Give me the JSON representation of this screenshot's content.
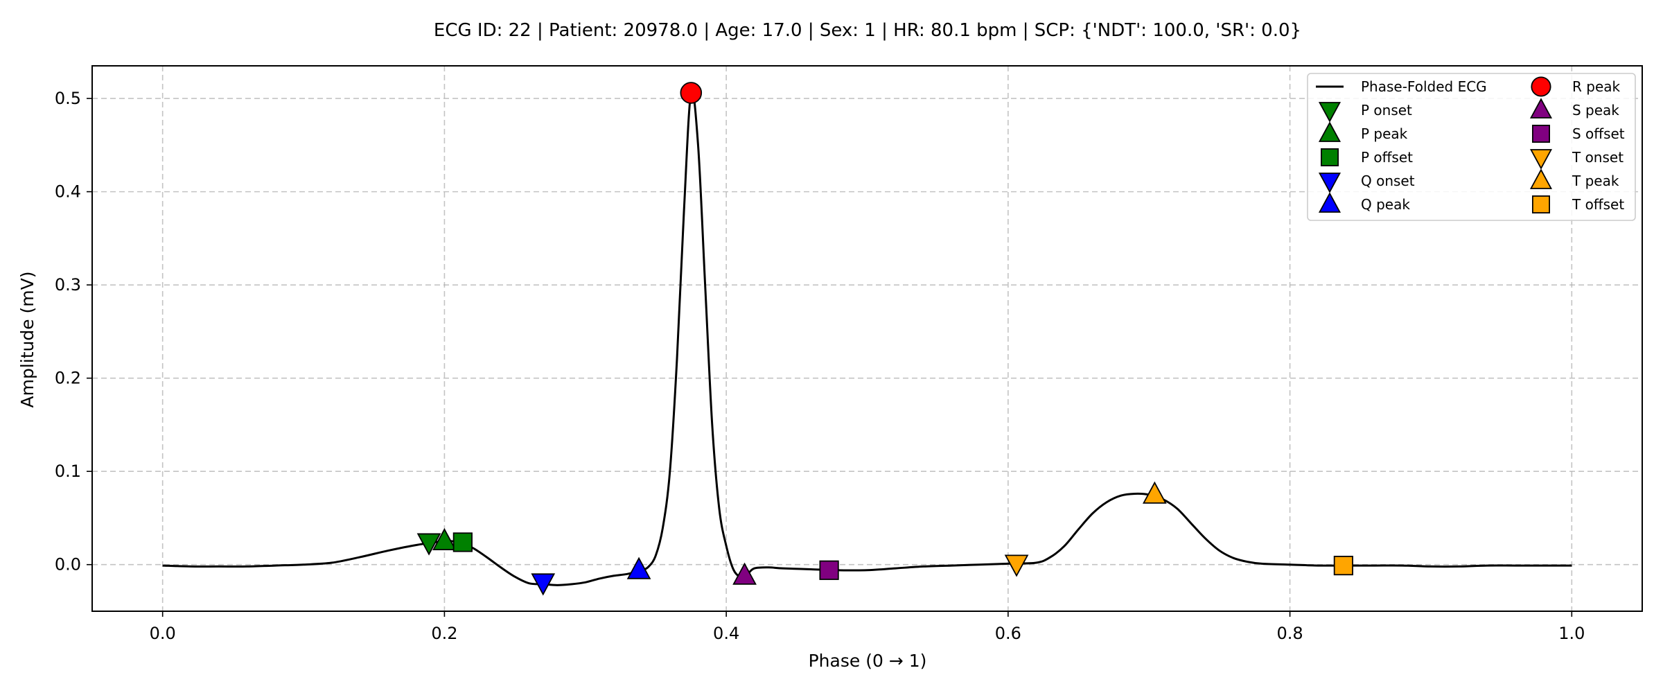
{
  "chart_data": {
    "type": "line",
    "title": "ECG ID: 22 | Patient: 20978.0 | Age: 17.0 | Sex: 1 | HR: 80.1 bpm | SCP: {'NDT': 100.0, 'SR': 0.0}",
    "xlabel": "Phase (0 → 1)",
    "ylabel": "Amplitude (mV)",
    "xlim": [
      -0.05,
      1.05
    ],
    "ylim": [
      -0.05,
      0.535
    ],
    "xticks": [
      0.0,
      0.2,
      0.4,
      0.6,
      0.8,
      1.0
    ],
    "xtick_labels": [
      "0.0",
      "0.2",
      "0.4",
      "0.6",
      "0.8",
      "1.0"
    ],
    "yticks": [
      0.0,
      0.1,
      0.2,
      0.3,
      0.4,
      0.5
    ],
    "ytick_labels": [
      "0.0",
      "0.1",
      "0.2",
      "0.3",
      "0.4",
      "0.5"
    ],
    "grid": true,
    "legend_position": "upper right",
    "legend_columns": 2,
    "series": [
      {
        "name": "Phase-Folded ECG",
        "color": "#000000",
        "x": [
          0.0,
          0.02,
          0.04,
          0.06,
          0.08,
          0.1,
          0.12,
          0.14,
          0.16,
          0.18,
          0.2,
          0.21,
          0.22,
          0.23,
          0.24,
          0.25,
          0.26,
          0.27,
          0.28,
          0.29,
          0.3,
          0.31,
          0.32,
          0.33,
          0.34,
          0.345,
          0.35,
          0.355,
          0.36,
          0.365,
          0.37,
          0.375,
          0.38,
          0.385,
          0.39,
          0.395,
          0.4,
          0.405,
          0.41,
          0.415,
          0.42,
          0.43,
          0.44,
          0.46,
          0.48,
          0.5,
          0.52,
          0.54,
          0.56,
          0.58,
          0.6,
          0.62,
          0.63,
          0.64,
          0.65,
          0.66,
          0.67,
          0.68,
          0.69,
          0.7,
          0.71,
          0.72,
          0.73,
          0.74,
          0.75,
          0.76,
          0.77,
          0.78,
          0.8,
          0.82,
          0.84,
          0.86,
          0.88,
          0.9,
          0.92,
          0.94,
          0.96,
          0.98,
          1.0
        ],
        "y": [
          -0.001,
          -0.002,
          -0.002,
          -0.002,
          -0.001,
          0.0,
          0.002,
          0.008,
          0.015,
          0.021,
          0.025,
          0.024,
          0.018,
          0.008,
          -0.003,
          -0.013,
          -0.02,
          -0.021,
          -0.022,
          -0.021,
          -0.019,
          -0.015,
          -0.012,
          -0.01,
          -0.006,
          -0.002,
          0.01,
          0.04,
          0.1,
          0.22,
          0.38,
          0.506,
          0.45,
          0.3,
          0.15,
          0.06,
          0.02,
          -0.005,
          -0.013,
          -0.01,
          -0.004,
          -0.003,
          -0.004,
          -0.005,
          -0.006,
          -0.006,
          -0.004,
          -0.002,
          -0.001,
          0.0,
          0.001,
          0.002,
          0.008,
          0.02,
          0.038,
          0.055,
          0.067,
          0.074,
          0.076,
          0.075,
          0.07,
          0.06,
          0.044,
          0.028,
          0.015,
          0.007,
          0.003,
          0.001,
          0.0,
          -0.001,
          -0.001,
          -0.001,
          -0.001,
          -0.002,
          -0.002,
          -0.001,
          -0.001,
          -0.001,
          -0.001
        ]
      }
    ],
    "markers": [
      {
        "name": "P onset",
        "x": 0.189,
        "y": 0.024,
        "shape": "triangle-down",
        "color": "#008000"
      },
      {
        "name": "P peak",
        "x": 0.2,
        "y": 0.025,
        "shape": "triangle-up",
        "color": "#008000"
      },
      {
        "name": "P offset",
        "x": 0.213,
        "y": 0.024,
        "shape": "square",
        "color": "#008000"
      },
      {
        "name": "Q onset",
        "x": 0.27,
        "y": -0.019,
        "shape": "triangle-down",
        "color": "#0000ff"
      },
      {
        "name": "Q peak",
        "x": 0.338,
        "y": -0.006,
        "shape": "triangle-up",
        "color": "#0000ff"
      },
      {
        "name": "R peak",
        "x": 0.375,
        "y": 0.506,
        "shape": "circle",
        "color": "#ff0000"
      },
      {
        "name": "S peak",
        "x": 0.413,
        "y": -0.012,
        "shape": "triangle-up",
        "color": "#800080"
      },
      {
        "name": "S offset",
        "x": 0.473,
        "y": -0.006,
        "shape": "square",
        "color": "#800080"
      },
      {
        "name": "T onset",
        "x": 0.606,
        "y": 0.001,
        "shape": "triangle-down",
        "color": "#ffa500"
      },
      {
        "name": "T peak",
        "x": 0.704,
        "y": 0.075,
        "shape": "triangle-up",
        "color": "#ffa500"
      },
      {
        "name": "T offset",
        "x": 0.838,
        "y": -0.001,
        "shape": "square",
        "color": "#ffa500"
      }
    ]
  }
}
